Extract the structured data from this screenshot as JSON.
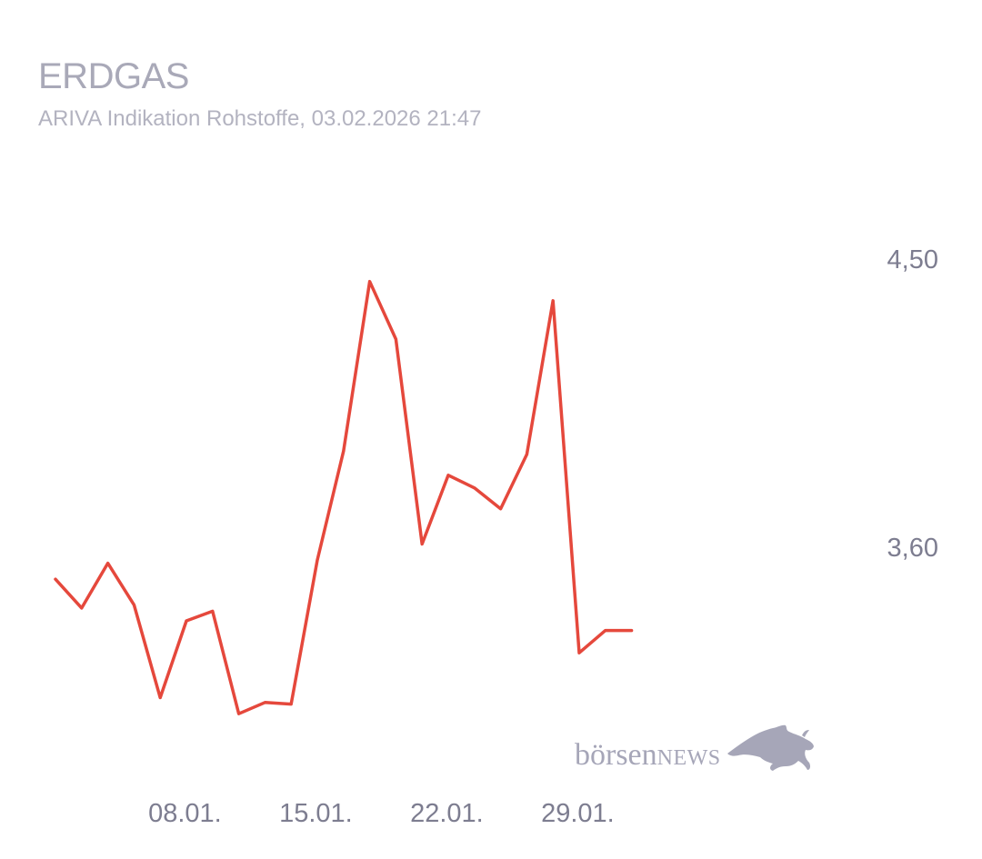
{
  "header": {
    "title": "ERDGAS",
    "subtitle": "ARIVA Indikation Rohstoffe, 03.02.2026 21:47"
  },
  "watermark": {
    "brand_lower": "börsen",
    "brand_upper": "NEWS",
    "icon": "bull-icon"
  },
  "colors": {
    "line": "#e5483c",
    "tick_text": "#7d7d90",
    "title_text": "#a9a9b8",
    "watermark": "#a6a6b8"
  },
  "chart_data": {
    "type": "line",
    "title": "ERDGAS",
    "subtitle": "ARIVA Indikation Rohstoffe, 03.02.2026 21:47",
    "x_ticks": [
      "08.01.",
      "15.01.",
      "22.01.",
      "29.01."
    ],
    "y_ticks": [
      {
        "value": 3.6,
        "label": "3,60"
      },
      {
        "value": 4.5,
        "label": "4,50"
      }
    ],
    "ylim": [
      2.8,
      5.0
    ],
    "grid": false,
    "y_axis_position": "right",
    "series": [
      {
        "color": "#e5483c",
        "points": [
          {
            "x": "2026-01-05",
            "y": 3.5
          },
          {
            "x": "2026-01-06",
            "y": 3.41
          },
          {
            "x": "2026-01-07",
            "y": 3.55
          },
          {
            "x": "2026-01-08",
            "y": 3.42
          },
          {
            "x": "2026-01-09",
            "y": 3.13
          },
          {
            "x": "2026-01-12",
            "y": 3.37
          },
          {
            "x": "2026-01-13",
            "y": 3.4
          },
          {
            "x": "2026-01-14",
            "y": 3.08
          },
          {
            "x": "2026-01-15",
            "y": 3.115
          },
          {
            "x": "2026-01-16",
            "y": 3.11
          },
          {
            "x": "2026-01-19",
            "y": 3.56
          },
          {
            "x": "2026-01-20",
            "y": 3.9
          },
          {
            "x": "2026-01-21",
            "y": 4.43
          },
          {
            "x": "2026-01-22",
            "y": 4.25
          },
          {
            "x": "2026-01-23",
            "y": 3.61
          },
          {
            "x": "2026-01-26",
            "y": 3.825
          },
          {
            "x": "2026-01-27",
            "y": 3.785
          },
          {
            "x": "2026-01-28",
            "y": 3.72
          },
          {
            "x": "2026-01-29",
            "y": 3.89
          },
          {
            "x": "2026-01-30",
            "y": 4.37
          },
          {
            "x": "2026-02-02",
            "y": 3.27
          },
          {
            "x": "2026-02-03",
            "y": 3.34
          },
          {
            "x": "2026-02-04",
            "y": 3.34
          }
        ]
      }
    ]
  }
}
